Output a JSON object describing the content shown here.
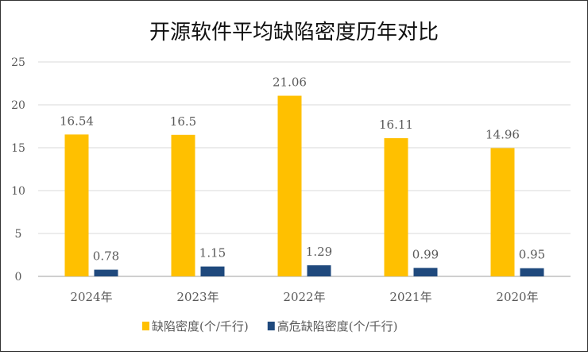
{
  "chart_data": {
    "type": "bar",
    "title": "开源软件平均缺陷密度历年对比",
    "categories": [
      "2024年",
      "2023年",
      "2022年",
      "2021年",
      "2020年"
    ],
    "series": [
      {
        "name": "缺陷密度(个/千行)",
        "color": "#FFC000",
        "values": [
          16.54,
          16.5,
          21.06,
          16.11,
          14.96
        ],
        "labels": [
          "16.54",
          "16.5",
          "21.06",
          "16.11",
          "14.96"
        ]
      },
      {
        "name": "高危缺陷密度(个/千行)",
        "color": "#1F497D",
        "values": [
          0.78,
          1.15,
          1.29,
          0.99,
          0.95
        ],
        "labels": [
          "0.78",
          "1.15",
          "1.29",
          "0.99",
          "0.95"
        ]
      }
    ],
    "ylim": [
      0,
      25
    ],
    "yticks": [
      "0",
      "5",
      "10",
      "15",
      "20",
      "25"
    ],
    "grid": true,
    "legend": "bottom",
    "xlabel": "",
    "ylabel": ""
  }
}
